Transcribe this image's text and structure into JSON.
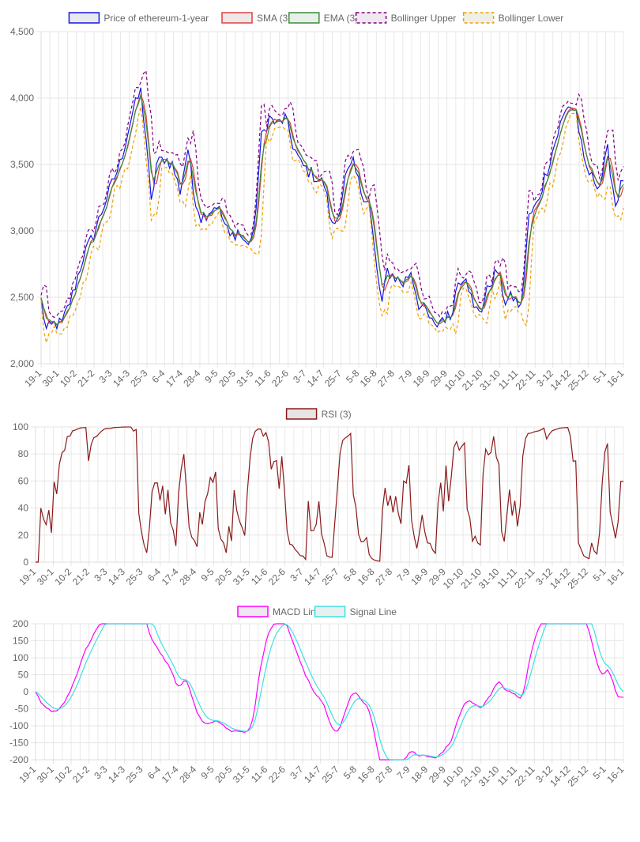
{
  "chart_data": [
    {
      "type": "line",
      "legend_position": "top",
      "grid": true,
      "ylim": [
        2000,
        4500
      ],
      "yticks": [
        "2,000",
        "2,500",
        "3,000",
        "3,500",
        "4,000",
        "4,500"
      ],
      "xtick_labels": [
        "19-1",
        "30-1",
        "10-2",
        "21-2",
        "3-3",
        "14-3",
        "25-3",
        "6-4",
        "17-4",
        "28-4",
        "9-5",
        "20-5",
        "31-5",
        "11-6",
        "22-6",
        "3-7",
        "14-7",
        "25-7",
        "5-8",
        "16-8",
        "27-8",
        "7-9",
        "18-9",
        "29-9",
        "10-10",
        "21-10",
        "31-10",
        "11-11",
        "22-11",
        "3-12",
        "14-12",
        "25-12",
        "5-1",
        "16-1"
      ],
      "anchors": [
        [
          0,
          2480
        ],
        [
          2,
          2250
        ],
        [
          5,
          2300
        ],
        [
          8,
          2300
        ],
        [
          12,
          2520
        ],
        [
          16,
          2800
        ],
        [
          20,
          2970
        ],
        [
          25,
          3250
        ],
        [
          30,
          3500
        ],
        [
          35,
          3900
        ],
        [
          38,
          4050
        ],
        [
          40,
          3700
        ],
        [
          42,
          3200
        ],
        [
          44,
          3500
        ],
        [
          47,
          3550
        ],
        [
          50,
          3500
        ],
        [
          53,
          3300
        ],
        [
          56,
          3620
        ],
        [
          58,
          3300
        ],
        [
          61,
          3100
        ],
        [
          64,
          3150
        ],
        [
          67,
          3200
        ],
        [
          70,
          3050
        ],
        [
          72,
          2950
        ],
        [
          75,
          3000
        ],
        [
          78,
          2900
        ],
        [
          81,
          2960
        ],
        [
          84,
          3700
        ],
        [
          87,
          3850
        ],
        [
          90,
          3800
        ],
        [
          93,
          3850
        ],
        [
          96,
          3650
        ],
        [
          99,
          3500
        ],
        [
          102,
          3450
        ],
        [
          105,
          3400
        ],
        [
          108,
          3350
        ],
        [
          111,
          3030
        ],
        [
          113,
          3100
        ],
        [
          116,
          3400
        ],
        [
          119,
          3500
        ],
        [
          122,
          3300
        ],
        [
          125,
          3220
        ],
        [
          128,
          2700
        ],
        [
          130,
          2450
        ],
        [
          132,
          2700
        ],
        [
          135,
          2650
        ],
        [
          138,
          2600
        ],
        [
          141,
          2700
        ],
        [
          144,
          2450
        ],
        [
          147,
          2380
        ],
        [
          150,
          2270
        ],
        [
          153,
          2350
        ],
        [
          156,
          2350
        ],
        [
          159,
          2620
        ],
        [
          162,
          2680
        ],
        [
          165,
          2400
        ],
        [
          168,
          2420
        ],
        [
          171,
          2600
        ],
        [
          174,
          2700
        ],
        [
          177,
          2470
        ],
        [
          180,
          2500
        ],
        [
          183,
          2420
        ],
        [
          186,
          3100
        ],
        [
          189,
          3200
        ],
        [
          192,
          3400
        ],
        [
          195,
          3600
        ],
        [
          198,
          3800
        ],
        [
          201,
          3950
        ],
        [
          204,
          3900
        ],
        [
          207,
          3500
        ],
        [
          210,
          3400
        ],
        [
          213,
          3350
        ],
        [
          216,
          3600
        ],
        [
          219,
          3200
        ],
        [
          222,
          3400
        ]
      ],
      "series": [
        {
          "name": "Price of ethereum-1-year",
          "color": "#1414e6",
          "fill": "#e8e8ef",
          "dash": false
        },
        {
          "name": "SMA (3)",
          "color": "#e04040",
          "fill": "#efe8e8",
          "dash": false
        },
        {
          "name": "EMA (3)",
          "color": "#3a8a3a",
          "fill": "#e8efe8",
          "dash": false
        },
        {
          "name": "Bollinger Upper",
          "color": "#800080",
          "fill": "#efe8ef",
          "dash": true
        },
        {
          "name": "Bollinger Lower",
          "color": "#f0a000",
          "fill": "#efefe8",
          "dash": true
        }
      ]
    },
    {
      "type": "line",
      "legend_position": "top",
      "grid": true,
      "ylim": [
        0,
        100
      ],
      "yticks": [
        "0",
        "20",
        "40",
        "60",
        "80",
        "100"
      ],
      "xtick_labels": [
        "19-1",
        "30-1",
        "10-2",
        "21-2",
        "3-3",
        "14-3",
        "25-3",
        "6-4",
        "17-4",
        "28-4",
        "9-5",
        "20-5",
        "31-5",
        "11-6",
        "22-6",
        "3-7",
        "14-7",
        "25-7",
        "5-8",
        "16-8",
        "27-8",
        "7-9",
        "18-9",
        "29-9",
        "10-10",
        "21-10",
        "31-10",
        "11-11",
        "22-11",
        "3-12",
        "14-12",
        "25-12",
        "5-1",
        "16-1"
      ],
      "series": [
        {
          "name": "RSI (3)",
          "color": "#8b1a1a",
          "fill": "#e8e4e4",
          "dash": false
        }
      ]
    },
    {
      "type": "line",
      "legend_position": "top",
      "grid": true,
      "ylim": [
        -200,
        200
      ],
      "yticks": [
        "-200",
        "-150",
        "-100",
        "-50",
        "0",
        "50",
        "100",
        "150",
        "200"
      ],
      "xtick_labels": [
        "19-1",
        "30-1",
        "10-2",
        "21-2",
        "3-3",
        "14-3",
        "25-3",
        "6-4",
        "17-4",
        "28-4",
        "9-5",
        "20-5",
        "31-5",
        "11-6",
        "22-6",
        "3-7",
        "14-7",
        "25-7",
        "5-8",
        "16-8",
        "27-8",
        "7-9",
        "18-9",
        "29-9",
        "10-10",
        "21-10",
        "31-10",
        "11-11",
        "22-11",
        "3-12",
        "14-12",
        "25-12",
        "5-1",
        "16-1"
      ],
      "series": [
        {
          "name": "MACD Line",
          "color": "#ff00ff",
          "fill": "#f0e8f0",
          "dash": false
        },
        {
          "name": "Signal Line",
          "color": "#40e0e0",
          "fill": "#e8f0f0",
          "dash": false
        }
      ]
    }
  ]
}
